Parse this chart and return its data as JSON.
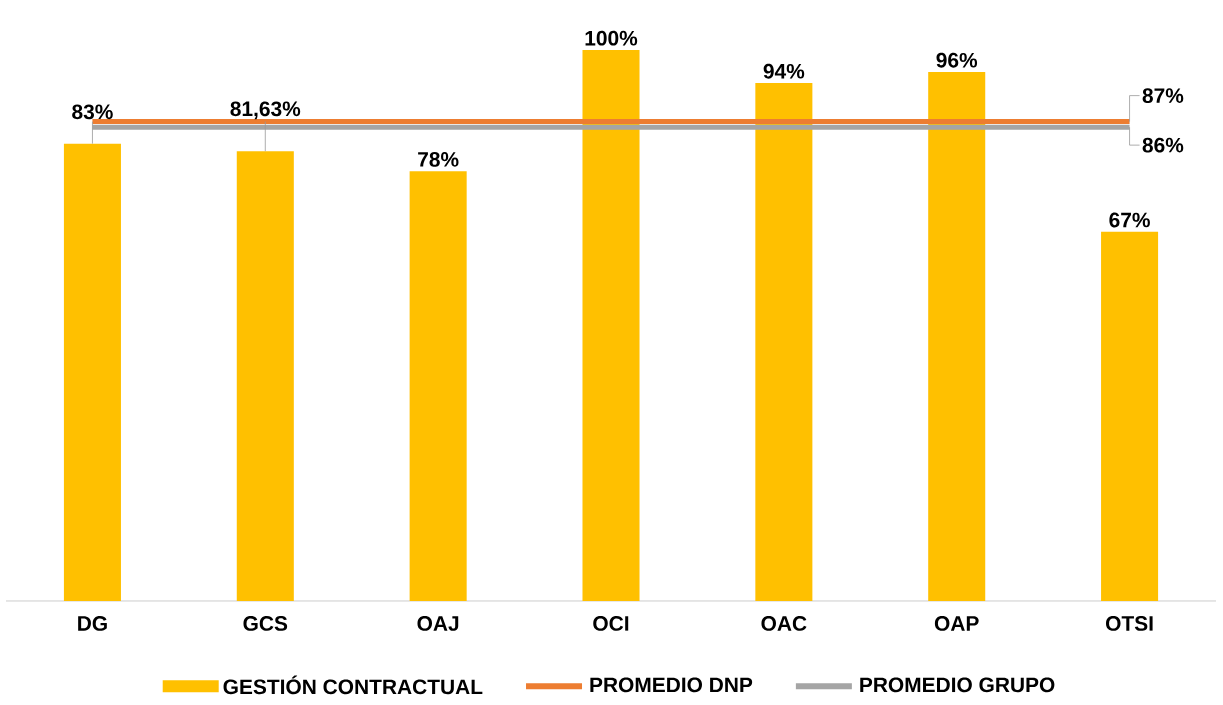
{
  "chart_data": {
    "type": "bar",
    "categories": [
      "DG",
      "GCS",
      "OAJ",
      "OCI",
      "OAC",
      "OAP",
      "OTSI"
    ],
    "series": [
      {
        "name": "GESTIÓN CONTRACTUAL",
        "color": "#ffc000",
        "values": [
          83,
          81.63,
          78,
          100,
          94,
          96,
          67
        ],
        "value_labels": [
          "83%",
          "81,63%",
          "78%",
          "100%",
          "94%",
          "96%",
          "67%"
        ]
      },
      {
        "name": "PROMEDIO DNP",
        "type": "line",
        "color": "#ed7d31",
        "values": [
          87,
          87,
          87,
          87,
          87,
          87,
          87
        ],
        "value_labels": [
          null,
          null,
          null,
          null,
          null,
          null,
          "87%"
        ]
      },
      {
        "name": "PROMEDIO GRUPO",
        "type": "line",
        "color": "#a5a5a5",
        "values": [
          86,
          86,
          86,
          86,
          86,
          86,
          86
        ],
        "value_labels": [
          null,
          null,
          null,
          null,
          null,
          null,
          "86%"
        ]
      }
    ],
    "ylim": [
      0,
      100
    ],
    "tick_labels": "x",
    "legend": "bottom"
  }
}
